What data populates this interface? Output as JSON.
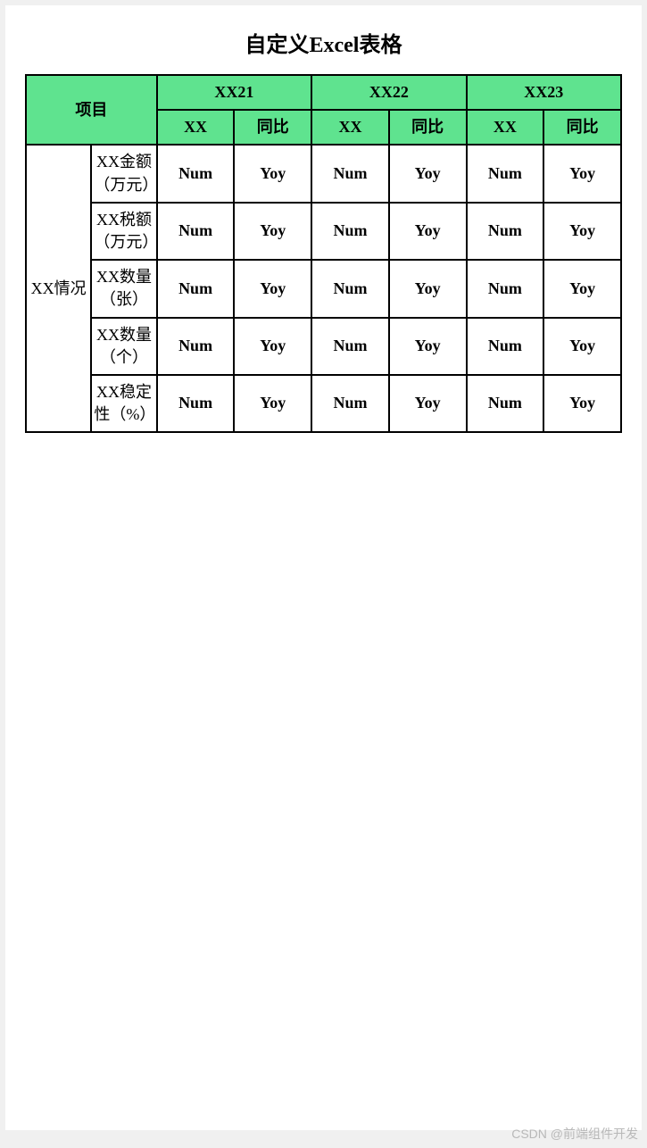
{
  "title": "自定义Excel表格",
  "styling": {
    "header_bg": "#5fe38f",
    "border_color": "#000000",
    "page_bg": "#ffffff",
    "body_bg": "#f0f0f0",
    "title_fontsize": 24,
    "cell_fontsize": 18
  },
  "table": {
    "project_header": "项目",
    "year_groups": [
      "XX21",
      "XX22",
      "XX23"
    ],
    "year_sub": {
      "value": "XX",
      "yoy": "同比"
    },
    "category_label": "XX情况",
    "rows": [
      {
        "label": "XX金额（万元）",
        "cells": [
          "Num",
          "Yoy",
          "Num",
          "Yoy",
          "Num",
          "Yoy"
        ]
      },
      {
        "label": "XX税额（万元）",
        "cells": [
          "Num",
          "Yoy",
          "Num",
          "Yoy",
          "Num",
          "Yoy"
        ]
      },
      {
        "label": "XX数量（张）",
        "cells": [
          "Num",
          "Yoy",
          "Num",
          "Yoy",
          "Num",
          "Yoy"
        ]
      },
      {
        "label": "XX数量（个）",
        "cells": [
          "Num",
          "Yoy",
          "Num",
          "Yoy",
          "Num",
          "Yoy"
        ]
      },
      {
        "label": "XX稳定性（%）",
        "cells": [
          "Num",
          "Yoy",
          "Num",
          "Yoy",
          "Num",
          "Yoy"
        ]
      }
    ]
  },
  "watermark": "CSDN @前端组件开发"
}
